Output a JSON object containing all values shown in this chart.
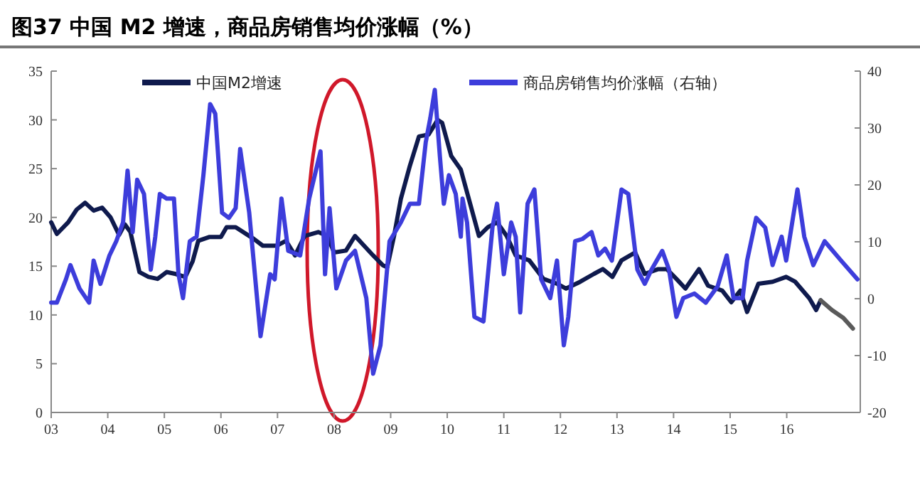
{
  "chart_data": {
    "type": "line",
    "title": "图37 中国 M2 增速，商品房销售均价涨幅（%）",
    "xlim": [
      2003,
      2017.3
    ],
    "xticks": [
      {
        "value": 2003,
        "label": "03"
      },
      {
        "value": 2004,
        "label": "04"
      },
      {
        "value": 2005,
        "label": "05"
      },
      {
        "value": 2006,
        "label": "06"
      },
      {
        "value": 2007,
        "label": "07"
      },
      {
        "value": 2008,
        "label": "08"
      },
      {
        "value": 2009,
        "label": "09"
      },
      {
        "value": 2010,
        "label": "10"
      },
      {
        "value": 2011,
        "label": "11"
      },
      {
        "value": 2012,
        "label": "12"
      },
      {
        "value": 2013,
        "label": "13"
      },
      {
        "value": 2014,
        "label": "14"
      },
      {
        "value": 2015,
        "label": "15"
      },
      {
        "value": 2016,
        "label": "16"
      }
    ],
    "ylim": [
      0,
      35
    ],
    "yticks": [
      0,
      5,
      10,
      15,
      20,
      25,
      30,
      35
    ],
    "y2lim": [
      -20,
      40
    ],
    "y2ticks": [
      -20,
      -10,
      0,
      10,
      20,
      30,
      40
    ],
    "legend": "top",
    "grid": false,
    "marker": "none",
    "line_style": "solid",
    "series": [
      {
        "name": "中国M2增速",
        "color": "#0f1a4d",
        "x": [
          2003.0,
          2003.1,
          2003.3,
          2003.45,
          2003.6,
          2003.75,
          2003.9,
          2004.05,
          2004.2,
          2004.3,
          2004.4,
          2004.56,
          2004.72,
          2004.88,
          2005.04,
          2005.2,
          2005.37,
          2005.5,
          2005.6,
          2005.8,
          2006.0,
          2006.1,
          2006.26,
          2006.58,
          2006.74,
          2006.99,
          2007.15,
          2007.31,
          2007.48,
          2007.72,
          2007.88,
          2008.0,
          2008.21,
          2008.37,
          2008.53,
          2008.69,
          2008.86,
          2008.94,
          2009.06,
          2009.18,
          2009.34,
          2009.5,
          2009.67,
          2009.83,
          2009.91,
          2010.07,
          2010.24,
          2010.4,
          2010.56,
          2010.72,
          2010.88,
          2011.05,
          2011.21,
          2011.45,
          2011.7,
          2011.94,
          2012.1,
          2012.35,
          2012.59,
          2012.75,
          2012.92,
          2013.08,
          2013.32,
          2013.49,
          2013.73,
          2013.88,
          2014.05,
          2014.21,
          2014.45,
          2014.61,
          2014.86,
          2015.02,
          2015.18,
          2015.3,
          2015.5,
          2015.75,
          2015.99,
          2016.15,
          2016.4,
          2016.52,
          2016.6
        ],
        "values": [
          19.5,
          18.3,
          19.5,
          20.8,
          21.5,
          20.7,
          21,
          20,
          18.2,
          19.3,
          18.5,
          14.4,
          13.9,
          13.7,
          14.4,
          14.2,
          13.9,
          15.5,
          17.6,
          18,
          18,
          19,
          19,
          17.8,
          17.1,
          17.1,
          17.6,
          16.1,
          18.1,
          18.5,
          18.1,
          16.4,
          16.6,
          18.1,
          17.1,
          16.1,
          15.1,
          14.9,
          18.1,
          21.9,
          25.3,
          28.3,
          28.5,
          30,
          29.7,
          26.3,
          24.9,
          21.5,
          18.1,
          19,
          19.5,
          18.1,
          16.1,
          15.6,
          13.7,
          13.2,
          12.7,
          13.4,
          14.2,
          14.7,
          13.9,
          15.6,
          16.4,
          14.2,
          14.7,
          14.7,
          13.7,
          12.7,
          14.7,
          13,
          12.5,
          11.3,
          12.5,
          10.3,
          13.2,
          13.4,
          13.9,
          13.4,
          11.7,
          10.5,
          11.5
        ]
      },
      {
        "color": "#5a5a5a",
        "x": [
          2016.6,
          2016.8,
          2017.0,
          2017.17
        ],
        "values": [
          11.5,
          10.5,
          9.7,
          8.6
        ]
      },
      {
        "name": "商品房销售均价涨幅（右轴）",
        "color": "#3d3ddb",
        "axis": "y2",
        "x": [
          2003.0,
          2003.1,
          2003.26,
          2003.34,
          2003.5,
          2003.67,
          2003.75,
          2003.87,
          2004.03,
          2004.15,
          2004.27,
          2004.35,
          2004.44,
          2004.52,
          2004.64,
          2004.76,
          2004.84,
          2004.92,
          2005.04,
          2005.17,
          2005.25,
          2005.33,
          2005.45,
          2005.57,
          2005.69,
          2005.81,
          2005.9,
          2006.02,
          2006.14,
          2006.26,
          2006.34,
          2006.5,
          2006.7,
          2006.87,
          2006.95,
          2007.07,
          2007.19,
          2007.4,
          2007.56,
          2007.76,
          2007.84,
          2007.92,
          2008.04,
          2008.21,
          2008.37,
          2008.57,
          2008.69,
          2008.82,
          2008.98,
          2009.18,
          2009.34,
          2009.5,
          2009.62,
          2009.7,
          2009.78,
          2009.87,
          2009.94,
          2010.03,
          2010.15,
          2010.24,
          2010.27,
          2010.35,
          2010.48,
          2010.64,
          2010.8,
          2010.88,
          2011.0,
          2011.13,
          2011.21,
          2011.29,
          2011.42,
          2011.54,
          2011.66,
          2011.82,
          2011.94,
          2012.06,
          2012.14,
          2012.26,
          2012.39,
          2012.55,
          2012.67,
          2012.79,
          2012.91,
          2013.08,
          2013.2,
          2013.36,
          2013.49,
          2013.61,
          2013.8,
          2013.92,
          2014.05,
          2014.17,
          2014.37,
          2014.57,
          2014.78,
          2014.94,
          2015.06,
          2015.22,
          2015.3,
          2015.46,
          2015.62,
          2015.75,
          2015.91,
          2015.99,
          2016.07,
          2016.19,
          2016.31,
          2016.47,
          2016.67,
          2016.96,
          2017.25
        ],
        "values": [
          -0.7,
          -0.7,
          3.4,
          5.9,
          1.8,
          -0.7,
          6.7,
          2.6,
          7.6,
          10.1,
          13.4,
          22.5,
          11.7,
          20.9,
          18.4,
          5.1,
          10.9,
          18.4,
          17.6,
          17.6,
          4.3,
          0.1,
          10.1,
          10.9,
          21.7,
          34.2,
          32.5,
          15.1,
          14.2,
          15.9,
          26.3,
          15.1,
          -6.6,
          4.3,
          3.4,
          17.6,
          8.4,
          7.6,
          17.6,
          25.9,
          4.3,
          15.9,
          1.8,
          6.7,
          8.4,
          0.1,
          -13.2,
          -8.2,
          10.1,
          13.4,
          16.7,
          16.7,
          27.5,
          31.7,
          36.7,
          25,
          16.7,
          21.7,
          18.4,
          10.9,
          17.6,
          13.4,
          -3.2,
          -4,
          12.6,
          16.7,
          4.3,
          13.4,
          10.9,
          -2.4,
          16.7,
          19.2,
          3.4,
          0.1,
          6.7,
          -8.2,
          -3.2,
          10.1,
          10.5,
          11.7,
          7.6,
          8.8,
          6.7,
          19.2,
          18.4,
          5.1,
          2.6,
          5.1,
          8.4,
          5.1,
          -3.2,
          0.1,
          0.9,
          -0.7,
          2.2,
          7.6,
          0.1,
          0.1,
          6.7,
          14.2,
          12.5,
          5.9,
          10.9,
          6.7,
          11.7,
          19.2,
          10.9,
          5.9,
          10.1,
          6.7,
          3.4
        ]
      }
    ]
  }
}
